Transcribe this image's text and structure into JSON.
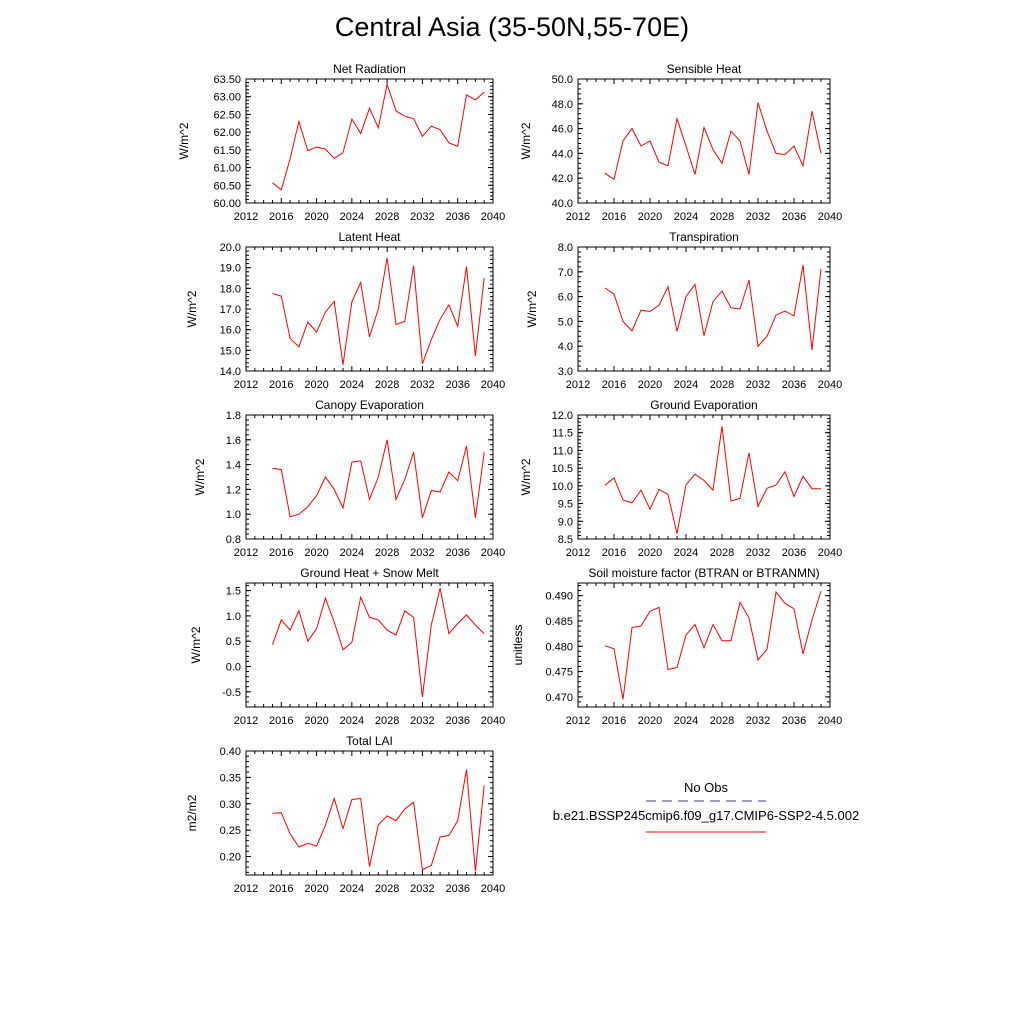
{
  "title": "Central Asia (35-50N,55-70E)",
  "chart_data": [
    {
      "type": "line",
      "title": "Net Radiation",
      "ylabel": "W/m^2",
      "xlim": [
        2012,
        2040
      ],
      "ylim": [
        60.0,
        63.5
      ],
      "xticks": [
        "2012",
        "2016",
        "2020",
        "2024",
        "2028",
        "2032",
        "2036",
        "2040"
      ],
      "yticks": [
        "60.00",
        "60.50",
        "61.00",
        "61.50",
        "62.00",
        "62.50",
        "63.00",
        "63.50"
      ],
      "x": [
        2015,
        2016,
        2017,
        2018,
        2019,
        2020,
        2021,
        2022,
        2023,
        2024,
        2025,
        2026,
        2027,
        2028,
        2029,
        2030,
        2031,
        2032,
        2033,
        2034,
        2035,
        2036,
        2037,
        2038,
        2039
      ],
      "series": [
        {
          "values": [
            60.57,
            60.37,
            61.25,
            62.3,
            61.48,
            61.58,
            61.52,
            61.26,
            61.42,
            62.37,
            61.96,
            62.68,
            62.12,
            63.35,
            62.6,
            62.45,
            62.38,
            61.88,
            62.17,
            62.07,
            61.7,
            61.6,
            63.05,
            62.91,
            63.13
          ]
        }
      ]
    },
    {
      "type": "line",
      "title": "Sensible Heat",
      "ylabel": "W/m^2",
      "xlim": [
        2012,
        2040
      ],
      "ylim": [
        40.0,
        50.0
      ],
      "xticks": [
        "2012",
        "2016",
        "2020",
        "2024",
        "2028",
        "2032",
        "2036",
        "2040"
      ],
      "yticks": [
        "40.0",
        "42.0",
        "44.0",
        "46.0",
        "48.0",
        "50.0"
      ],
      "x": [
        2015,
        2016,
        2017,
        2018,
        2019,
        2020,
        2021,
        2022,
        2023,
        2024,
        2025,
        2026,
        2027,
        2028,
        2029,
        2030,
        2031,
        2032,
        2033,
        2034,
        2035,
        2036,
        2037,
        2038,
        2039
      ],
      "series": [
        {
          "values": [
            42.4,
            41.9,
            45.0,
            46.0,
            44.6,
            45.0,
            43.3,
            43.0,
            46.8,
            44.6,
            42.3,
            46.1,
            44.3,
            43.2,
            45.8,
            45.0,
            42.3,
            48.1,
            45.8,
            44.0,
            43.9,
            44.6,
            43.0,
            47.4,
            44.0
          ]
        }
      ]
    },
    {
      "type": "line",
      "title": "Latent Heat",
      "ylabel": "W/m^2",
      "xlim": [
        2012,
        2040
      ],
      "ylim": [
        14.0,
        20.0
      ],
      "xticks": [
        "2012",
        "2016",
        "2020",
        "2024",
        "2028",
        "2032",
        "2036",
        "2040"
      ],
      "yticks": [
        "14.0",
        "15.0",
        "16.0",
        "17.0",
        "18.0",
        "19.0",
        "20.0"
      ],
      "x": [
        2015,
        2016,
        2017,
        2018,
        2019,
        2020,
        2021,
        2022,
        2023,
        2024,
        2025,
        2026,
        2027,
        2028,
        2029,
        2030,
        2031,
        2032,
        2033,
        2034,
        2035,
        2036,
        2037,
        2038,
        2039
      ],
      "series": [
        {
          "values": [
            17.75,
            17.62,
            15.58,
            15.17,
            16.37,
            15.88,
            16.85,
            17.37,
            14.3,
            17.35,
            18.28,
            15.65,
            17.0,
            19.47,
            16.25,
            16.4,
            19.1,
            14.35,
            15.52,
            16.5,
            17.2,
            16.17,
            19.05,
            14.72,
            18.5
          ]
        }
      ]
    },
    {
      "type": "line",
      "title": "Transpiration",
      "ylabel": "W/m^2",
      "xlim": [
        2012,
        2040
      ],
      "ylim": [
        3.0,
        8.0
      ],
      "xticks": [
        "2012",
        "2016",
        "2020",
        "2024",
        "2028",
        "2032",
        "2036",
        "2040"
      ],
      "yticks": [
        "3.0",
        "4.0",
        "5.0",
        "6.0",
        "7.0",
        "8.0"
      ],
      "x": [
        2015,
        2016,
        2017,
        2018,
        2019,
        2020,
        2021,
        2022,
        2023,
        2024,
        2025,
        2026,
        2027,
        2028,
        2029,
        2030,
        2031,
        2032,
        2033,
        2034,
        2035,
        2036,
        2037,
        2038,
        2039
      ],
      "series": [
        {
          "values": [
            6.35,
            6.1,
            5.0,
            4.62,
            5.45,
            5.4,
            5.65,
            6.4,
            4.6,
            6.0,
            6.5,
            4.42,
            5.8,
            6.22,
            5.55,
            5.5,
            6.67,
            4.0,
            4.4,
            5.25,
            5.42,
            5.22,
            7.27,
            3.85,
            7.12
          ]
        }
      ]
    },
    {
      "type": "line",
      "title": "Canopy Evaporation",
      "ylabel": "W/m^2",
      "xlim": [
        2012,
        2040
      ],
      "ylim": [
        0.8,
        1.8
      ],
      "xticks": [
        "2012",
        "2016",
        "2020",
        "2024",
        "2028",
        "2032",
        "2036",
        "2040"
      ],
      "yticks": [
        "0.8",
        "1.0",
        "1.2",
        "1.4",
        "1.6",
        "1.8"
      ],
      "x": [
        2015,
        2016,
        2017,
        2018,
        2019,
        2020,
        2021,
        2022,
        2023,
        2024,
        2025,
        2026,
        2027,
        2028,
        2029,
        2030,
        2031,
        2032,
        2033,
        2034,
        2035,
        2036,
        2037,
        2038,
        2039
      ],
      "series": [
        {
          "values": [
            1.37,
            1.36,
            0.98,
            1.0,
            1.06,
            1.15,
            1.3,
            1.2,
            1.05,
            1.42,
            1.43,
            1.12,
            1.3,
            1.6,
            1.12,
            1.28,
            1.5,
            0.97,
            1.19,
            1.18,
            1.34,
            1.27,
            1.55,
            0.97,
            1.5
          ]
        }
      ]
    },
    {
      "type": "line",
      "title": "Ground Evaporation",
      "ylabel": "W/m^2",
      "xlim": [
        2012,
        2040
      ],
      "ylim": [
        8.5,
        12.0
      ],
      "xticks": [
        "2012",
        "2016",
        "2020",
        "2024",
        "2028",
        "2032",
        "2036",
        "2040"
      ],
      "yticks": [
        "8.5",
        "9.0",
        "9.5",
        "10.0",
        "10.5",
        "11.0",
        "11.5",
        "12.0"
      ],
      "x": [
        2015,
        2016,
        2017,
        2018,
        2019,
        2020,
        2021,
        2022,
        2023,
        2024,
        2025,
        2026,
        2027,
        2028,
        2029,
        2030,
        2031,
        2032,
        2033,
        2034,
        2035,
        2036,
        2037,
        2038,
        2039
      ],
      "series": [
        {
          "values": [
            10.02,
            10.22,
            9.6,
            9.52,
            9.88,
            9.34,
            9.9,
            9.76,
            8.65,
            10.03,
            10.33,
            10.15,
            9.88,
            11.68,
            9.57,
            9.65,
            10.93,
            9.42,
            9.93,
            10.02,
            10.4,
            9.7,
            10.27,
            9.92,
            9.92
          ]
        }
      ]
    },
    {
      "type": "line",
      "title": "Ground Heat + Snow Melt",
      "ylabel": "W/m^2",
      "xlim": [
        2012,
        2040
      ],
      "ylim": [
        -0.8,
        1.65
      ],
      "xticks": [
        "2012",
        "2016",
        "2020",
        "2024",
        "2028",
        "2032",
        "2036",
        "2040"
      ],
      "yticks": [
        "-0.5",
        "0.0",
        "0.5",
        "1.0",
        "1.5"
      ],
      "ytick_values": [
        -0.5,
        0.0,
        0.5,
        1.0,
        1.5
      ],
      "x": [
        2015,
        2016,
        2017,
        2018,
        2019,
        2020,
        2021,
        2022,
        2023,
        2024,
        2025,
        2026,
        2027,
        2028,
        2029,
        2030,
        2031,
        2032,
        2033,
        2034,
        2035,
        2036,
        2037,
        2038,
        2039
      ],
      "series": [
        {
          "values": [
            0.43,
            0.92,
            0.72,
            1.1,
            0.5,
            0.75,
            1.35,
            0.88,
            0.33,
            0.48,
            1.37,
            0.97,
            0.92,
            0.72,
            0.62,
            1.1,
            0.97,
            -0.6,
            0.82,
            1.55,
            0.65,
            0.85,
            1.02,
            0.82,
            0.65
          ]
        }
      ]
    },
    {
      "type": "line",
      "title": "Soil moisture factor (BTRAN or BTRANMN)",
      "ylabel": "unitless",
      "xlim": [
        2012,
        2040
      ],
      "ylim": [
        0.468,
        0.4925
      ],
      "xticks": [
        "2012",
        "2016",
        "2020",
        "2024",
        "2028",
        "2032",
        "2036",
        "2040"
      ],
      "yticks": [
        "0.470",
        "0.475",
        "0.480",
        "0.485",
        "0.490"
      ],
      "ytick_values": [
        0.47,
        0.475,
        0.48,
        0.485,
        0.49
      ],
      "x": [
        2015,
        2016,
        2017,
        2018,
        2019,
        2020,
        2021,
        2022,
        2023,
        2024,
        2025,
        2026,
        2027,
        2028,
        2029,
        2030,
        2031,
        2032,
        2033,
        2034,
        2035,
        2036,
        2037,
        2038,
        2039
      ],
      "series": [
        {
          "values": [
            0.4801,
            0.4795,
            0.4695,
            0.4837,
            0.484,
            0.4869,
            0.4877,
            0.4754,
            0.4758,
            0.4822,
            0.4843,
            0.4797,
            0.4843,
            0.4811,
            0.4811,
            0.4887,
            0.4856,
            0.4773,
            0.4794,
            0.4907,
            0.4885,
            0.4874,
            0.4785,
            0.4852,
            0.4909
          ]
        }
      ]
    },
    {
      "type": "line",
      "title": "Total LAI",
      "ylabel": "m2/m2",
      "xlim": [
        2012,
        2040
      ],
      "ylim": [
        0.165,
        0.4
      ],
      "xticks": [
        "2012",
        "2016",
        "2020",
        "2024",
        "2028",
        "2032",
        "2036",
        "2040"
      ],
      "yticks": [
        "0.20",
        "0.25",
        "0.30",
        "0.35",
        "0.40"
      ],
      "ytick_values": [
        0.2,
        0.25,
        0.3,
        0.35,
        0.4
      ],
      "x": [
        2015,
        2016,
        2017,
        2018,
        2019,
        2020,
        2021,
        2022,
        2023,
        2024,
        2025,
        2026,
        2027,
        2028,
        2029,
        2030,
        2031,
        2032,
        2033,
        2034,
        2035,
        2036,
        2037,
        2038,
        2039
      ],
      "series": [
        {
          "values": [
            0.282,
            0.283,
            0.243,
            0.218,
            0.225,
            0.22,
            0.259,
            0.31,
            0.253,
            0.308,
            0.31,
            0.181,
            0.26,
            0.277,
            0.268,
            0.29,
            0.303,
            0.175,
            0.183,
            0.237,
            0.24,
            0.268,
            0.365,
            0.172,
            0.335
          ]
        }
      ]
    }
  ],
  "legend": {
    "items": [
      {
        "label": "No Obs",
        "color": "#3a3aa0",
        "style": "dashed"
      },
      {
        "label": "b.e21.BSSP245cmip6.f09_g17.CMIP6-SSP2-4.5.002",
        "color": "#ff0000",
        "style": "solid"
      }
    ]
  },
  "colors": {
    "line": "#ff0000",
    "axis": "#000000"
  }
}
